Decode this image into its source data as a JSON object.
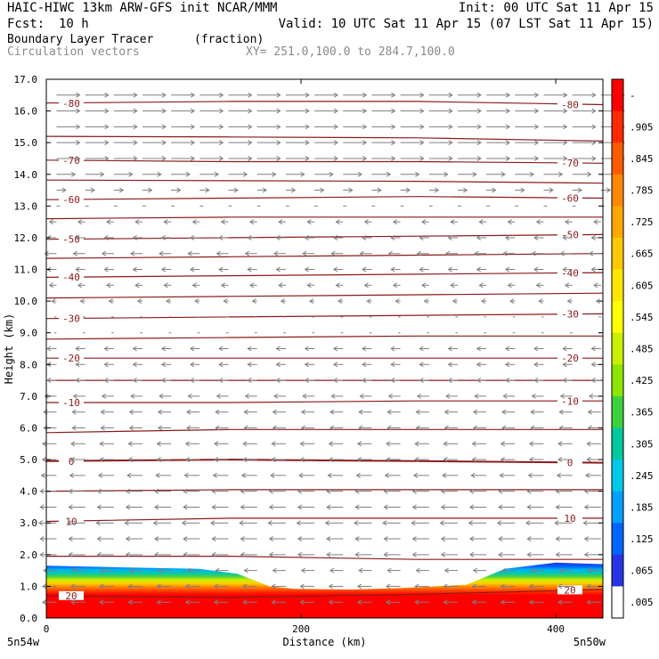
{
  "header": {
    "title": "HAIC-HIWC 13km ARW-GFS init   NCAR/MMM",
    "init": "Init: 00 UTC Sat 11 Apr 15",
    "fcst_label": "Fcst:",
    "fcst_value": "10 h",
    "valid": "Valid: 10 UTC Sat 11 Apr 15 (07 LST Sat 11 Apr 15)",
    "field_name": "Boundary Layer Tracer",
    "field_units": "(fraction)",
    "vector_label": "Circulation vectors",
    "xy_range": "XY= 251.0,100.0 to 284.7,100.0"
  },
  "chart_data": {
    "type": "heatmap",
    "xlabel": "Distance (km)",
    "ylabel": "Height (km)",
    "xlim": [
      0,
      437
    ],
    "ylim": [
      0,
      17
    ],
    "x_ticks": [
      {
        "value": 0,
        "label": "0"
      },
      {
        "value": 200,
        "label": "200"
      },
      {
        "value": 400,
        "label": "400"
      }
    ],
    "x_end_labels": {
      "left": "5n54w",
      "right": "5n50w"
    },
    "y_ticks": [
      0.0,
      1.0,
      2.0,
      3.0,
      4.0,
      5.0,
      6.0,
      7.0,
      8.0,
      9.0,
      10.0,
      11.0,
      12.0,
      13.0,
      14.0,
      15.0,
      16.0,
      17.0
    ],
    "y_tick_labels": [
      "0.0",
      "1.0",
      "2.0",
      "3.0",
      "4.0",
      "5.0",
      "6.0",
      "7.0",
      "8.0",
      "9.0",
      "10.0",
      "11.0",
      "12.0",
      "13.0",
      "14.0",
      "15.0",
      "16.0",
      "17.0"
    ],
    "colorbar": {
      "labels": [
        "-",
        ".905",
        ".845",
        ".785",
        ".725",
        ".665",
        ".605",
        ".545",
        ".485",
        ".425",
        ".365",
        ".305",
        ".245",
        ".185",
        ".125",
        ".065",
        ".005"
      ],
      "colors": [
        "#ff0000",
        "#ff2a00",
        "#ff5a00",
        "#ff8800",
        "#ffa800",
        "#ffc800",
        "#ffe600",
        "#ffff00",
        "#c8f000",
        "#8ce600",
        "#3cd23c",
        "#00c8a0",
        "#00c8e6",
        "#00a0ff",
        "#0064ff",
        "#2832e6",
        "#ffffff"
      ]
    },
    "tracer_top_km": [
      {
        "x": 0,
        "top": 1.65
      },
      {
        "x": 60,
        "top": 1.6
      },
      {
        "x": 120,
        "top": 1.55
      },
      {
        "x": 150,
        "top": 1.4
      },
      {
        "x": 175,
        "top": 1.0
      },
      {
        "x": 195,
        "top": 0.92
      },
      {
        "x": 240,
        "top": 0.9
      },
      {
        "x": 280,
        "top": 0.95
      },
      {
        "x": 330,
        "top": 1.05
      },
      {
        "x": 360,
        "top": 1.55
      },
      {
        "x": 400,
        "top": 1.75
      },
      {
        "x": 437,
        "top": 1.7
      }
    ],
    "temperature_contours": {
      "color": "#8b1a1a",
      "interval_C": 5,
      "labeled_values": [
        -80,
        -70,
        -60,
        -50,
        -40,
        -30,
        -20,
        -10,
        0,
        10,
        20
      ],
      "levels": [
        {
          "t": -80,
          "h": [
            16.25,
            16.3,
            16.3,
            16.2
          ],
          "label": "-80"
        },
        {
          "t": -75,
          "h": [
            15.2,
            15.18,
            15.15,
            15.05
          ],
          "label": ""
        },
        {
          "t": -70,
          "h": [
            14.45,
            14.4,
            14.4,
            14.35
          ],
          "label": "-70"
        },
        {
          "t": -65,
          "h": [
            13.82,
            13.8,
            13.78,
            13.72
          ],
          "label": ""
        },
        {
          "t": -60,
          "h": [
            13.2,
            13.25,
            13.3,
            13.25
          ],
          "label": "-60"
        },
        {
          "t": -55,
          "h": [
            12.6,
            12.65,
            12.65,
            12.65
          ],
          "label": ""
        },
        {
          "t": -50,
          "h": [
            11.95,
            12.0,
            12.05,
            12.1
          ],
          "label": "-50"
        },
        {
          "t": -45,
          "h": [
            11.35,
            11.4,
            11.45,
            11.5
          ],
          "label": ""
        },
        {
          "t": -40,
          "h": [
            10.75,
            10.8,
            10.85,
            10.9
          ],
          "label": "-40"
        },
        {
          "t": -35,
          "h": [
            10.1,
            10.15,
            10.2,
            10.25
          ],
          "label": ""
        },
        {
          "t": -30,
          "h": [
            9.45,
            9.5,
            9.55,
            9.6
          ],
          "label": "-30"
        },
        {
          "t": -25,
          "h": [
            8.8,
            8.85,
            8.9,
            8.9
          ],
          "label": ""
        },
        {
          "t": -20,
          "h": [
            8.2,
            8.2,
            8.2,
            8.2
          ],
          "label": "-20"
        },
        {
          "t": -15,
          "h": [
            7.5,
            7.5,
            7.5,
            7.5
          ],
          "label": ""
        },
        {
          "t": -10,
          "h": [
            6.8,
            6.8,
            6.85,
            6.85
          ],
          "label": "-10"
        },
        {
          "t": -5,
          "h": [
            5.85,
            5.95,
            5.95,
            5.95
          ],
          "label": ""
        },
        {
          "t": 0,
          "h": [
            4.95,
            5.0,
            4.95,
            4.9
          ],
          "label": "0"
        },
        {
          "t": 5,
          "h": [
            4.0,
            4.05,
            4.05,
            4.05
          ],
          "label": ""
        },
        {
          "t": 10,
          "h": [
            3.05,
            3.15,
            3.15,
            3.15
          ],
          "label": "10"
        },
        {
          "t": 15,
          "h": [
            1.95,
            1.95,
            1.85,
            1.85
          ],
          "label": ""
        },
        {
          "t": 20,
          "h": [
            0.7,
            0.65,
            0.75,
            0.9
          ],
          "label": "20"
        }
      ]
    },
    "circulation_vectors": {
      "color": "#7f7f7f",
      "rows": [
        {
          "h": 16.5,
          "u": 1.0
        },
        {
          "h": 16.0,
          "u": 1.0
        },
        {
          "h": 15.5,
          "u": 1.0
        },
        {
          "h": 15.0,
          "u": 1.0
        },
        {
          "h": 14.5,
          "u": 1.0
        },
        {
          "h": 14.0,
          "u": 0.8
        },
        {
          "h": 13.5,
          "u": 0.4
        },
        {
          "h": 13.0,
          "u": 0.15
        },
        {
          "h": 12.5,
          "u": -0.3
        },
        {
          "h": 12.0,
          "u": -0.4
        },
        {
          "h": 11.5,
          "u": -0.5
        },
        {
          "h": 11.0,
          "u": -0.4
        },
        {
          "h": 10.5,
          "u": -0.3
        },
        {
          "h": 10.0,
          "u": -0.2
        },
        {
          "h": 9.5,
          "u": -0.1
        },
        {
          "h": 9.0,
          "u": -0.1
        },
        {
          "h": 8.5,
          "u": -0.4
        },
        {
          "h": 8.0,
          "u": -0.4
        },
        {
          "h": 7.5,
          "u": -0.4
        },
        {
          "h": 7.0,
          "u": -0.5
        },
        {
          "h": 6.5,
          "u": -0.55
        },
        {
          "h": 6.0,
          "u": -0.55
        },
        {
          "h": 5.5,
          "u": -0.6
        },
        {
          "h": 5.0,
          "u": -0.6
        },
        {
          "h": 4.5,
          "u": -0.65
        },
        {
          "h": 4.0,
          "u": -0.7
        },
        {
          "h": 3.5,
          "u": -0.7
        },
        {
          "h": 3.0,
          "u": -0.75
        },
        {
          "h": 2.5,
          "u": -0.7
        },
        {
          "h": 2.0,
          "u": -0.7
        },
        {
          "h": 1.5,
          "u": -0.55
        },
        {
          "h": 1.0,
          "u": -0.6
        },
        {
          "h": 0.5,
          "u": -0.6
        }
      ]
    }
  }
}
